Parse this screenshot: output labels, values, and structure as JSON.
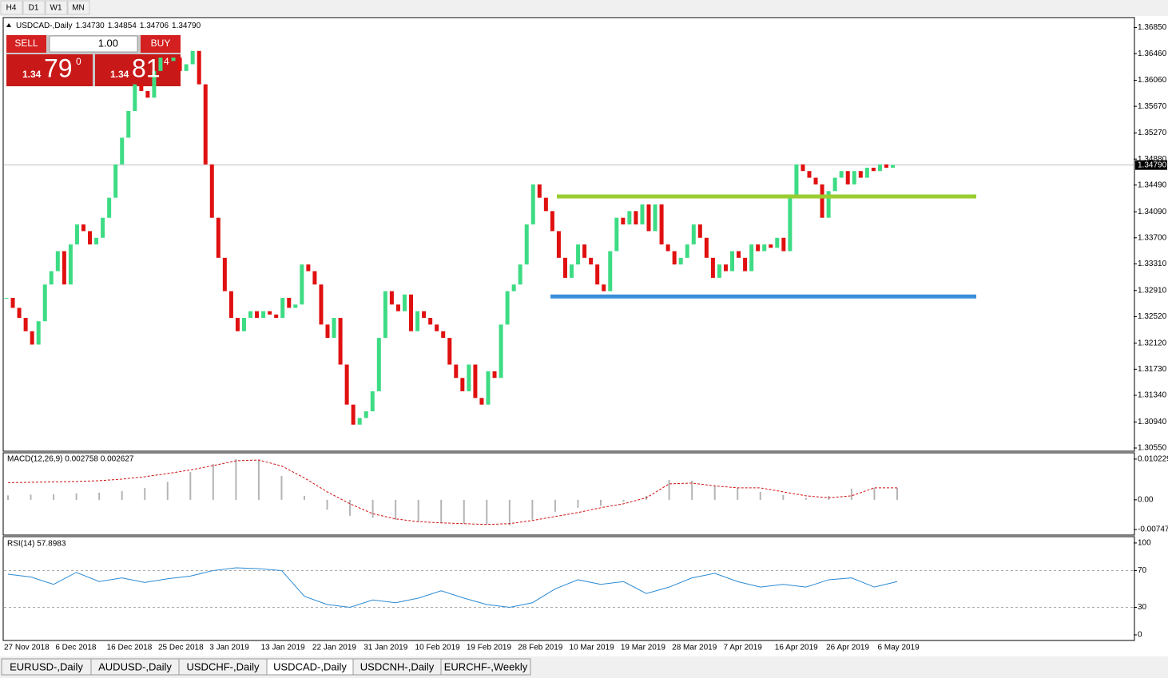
{
  "toolbar": {
    "timeframes": [
      "H4",
      "D1",
      "W1",
      "MN"
    ]
  },
  "symbol_header": {
    "label": "USDCAD-,Daily",
    "open": "1.34730",
    "high": "1.34854",
    "low": "1.34706",
    "close": "1.34790"
  },
  "trade_panel": {
    "sell": "SELL",
    "buy": "BUY",
    "lot": "1.00",
    "sell_big": "1.34",
    "sell_main": "79",
    "sell_frac": "0",
    "buy_big": "1.34",
    "buy_main": "81",
    "buy_frac": "4"
  },
  "price_chart": {
    "type": "candlestick",
    "ylim": [
      1.30514,
      1.37
    ],
    "yticks": [
      {
        "value": 1.3685,
        "label": "1.36850"
      },
      {
        "value": 1.3646,
        "label": "1.36460"
      },
      {
        "value": 1.3606,
        "label": "1.36060"
      },
      {
        "value": 1.3567,
        "label": "1.35670"
      },
      {
        "value": 1.3527,
        "label": "1.35270"
      },
      {
        "value": 1.3488,
        "label": "1.34880"
      },
      {
        "value": 1.3449,
        "label": "1.34490"
      },
      {
        "value": 1.3409,
        "label": "1.34090"
      },
      {
        "value": 1.337,
        "label": "1.33700"
      },
      {
        "value": 1.3331,
        "label": "1.33310"
      },
      {
        "value": 1.3291,
        "label": "1.32910"
      },
      {
        "value": 1.3252,
        "label": "1.32520"
      },
      {
        "value": 1.3212,
        "label": "1.32120"
      },
      {
        "value": 1.3173,
        "label": "1.31730"
      },
      {
        "value": 1.3134,
        "label": "1.31340"
      },
      {
        "value": 1.3094,
        "label": "1.30940"
      },
      {
        "value": 1.3055,
        "label": "1.30550"
      }
    ],
    "current_price": {
      "value": 1.3479,
      "label": "1.34790"
    },
    "up_color": "#3ddc84",
    "down_color": "#e01010",
    "closes": [
      1.328,
      1.3265,
      1.325,
      1.323,
      1.321,
      1.3245,
      1.33,
      1.332,
      1.335,
      1.33,
      1.336,
      1.339,
      1.338,
      1.336,
      1.337,
      1.34,
      1.343,
      1.348,
      1.352,
      1.356,
      1.36,
      1.359,
      1.358,
      1.362,
      1.364,
      1.3635,
      1.364,
      1.362,
      1.363,
      1.365,
      1.36,
      1.348,
      1.34,
      1.334,
      1.329,
      1.325,
      1.323,
      1.325,
      1.326,
      1.325,
      1.326,
      1.3255,
      1.325,
      1.328,
      1.3265,
      1.327,
      1.333,
      1.332,
      1.33,
      1.324,
      1.322,
      1.325,
      1.318,
      1.312,
      1.309,
      1.31,
      1.311,
      1.314,
      1.322,
      1.329,
      1.327,
      1.326,
      1.3285,
      1.323,
      1.326,
      1.325,
      1.324,
      1.323,
      1.322,
      1.318,
      1.316,
      1.314,
      1.318,
      1.313,
      1.312,
      1.317,
      1.316,
      1.324,
      1.329,
      1.33,
      1.333,
      1.339,
      1.345,
      1.343,
      1.341,
      1.338,
      1.334,
      1.331,
      1.333,
      1.336,
      1.334,
      1.333,
      1.33,
      1.329,
      1.335,
      1.34,
      1.339,
      1.341,
      1.339,
      1.342,
      1.338,
      1.342,
      1.336,
      1.335,
      1.333,
      1.334,
      1.336,
      1.339,
      1.337,
      1.334,
      1.331,
      1.333,
      1.332,
      1.335,
      1.334,
      1.332,
      1.336,
      1.335,
      1.336,
      1.3355,
      1.337,
      1.335,
      1.343,
      1.348,
      1.347,
      1.346,
      1.345,
      1.34,
      1.344,
      1.346,
      1.347,
      1.345,
      1.347,
      1.346,
      1.3475,
      1.347,
      1.348,
      1.3475,
      1.3479
    ],
    "levels": [
      {
        "value": 1.3432,
        "color": "#9acd32"
      },
      {
        "value": 1.3282,
        "color": "#3a8fd9"
      }
    ],
    "xlabels": [
      "27 Nov 2018",
      "6 Dec 2018",
      "16 Dec 2018",
      "25 Dec 2018",
      "3 Jan 2019",
      "13 Jan 2019",
      "22 Jan 2019",
      "31 Jan 2019",
      "10 Feb 2019",
      "19 Feb 2019",
      "28 Feb 2019",
      "10 Mar 2019",
      "19 Mar 2019",
      "28 Mar 2019",
      "7 Apr 2019",
      "16 Apr 2019",
      "26 Apr 2019",
      "6 May 2019"
    ]
  },
  "macd": {
    "label": "MACD(12,26,9) 0.002758 0.002627",
    "ylim": [
      -0.00866,
      0.01161
    ],
    "yticks": [
      {
        "value": 0.010229,
        "label": "0.010229"
      },
      {
        "value": 0,
        "label": "0.00"
      },
      {
        "value": -0.007477,
        "label": "-0.007477"
      }
    ],
    "hist_color": "#b4b4b4",
    "signal_color": "#d01010",
    "histogram": [
      0.0011,
      0.0013,
      0.0014,
      0.0016,
      0.0018,
      0.0022,
      0.003,
      0.0045,
      0.007,
      0.009,
      0.0102,
      0.01,
      0.006,
      0.001,
      -0.0025,
      -0.004,
      -0.0045,
      -0.005,
      -0.0055,
      -0.0058,
      -0.006,
      -0.0062,
      -0.0064,
      -0.005,
      -0.003,
      -0.002,
      -0.0015,
      -0.0005,
      0.001,
      0.005,
      0.0048,
      0.0035,
      0.003,
      0.002,
      0.0012,
      0.0005,
      0.001,
      0.0028,
      0.003,
      0.003
    ],
    "signal": [
      0.0043,
      0.0044,
      0.0045,
      0.0046,
      0.0048,
      0.0052,
      0.0058,
      0.0066,
      0.0075,
      0.0086,
      0.0098,
      0.01,
      0.0085,
      0.0055,
      0.002,
      -0.001,
      -0.0035,
      -0.0048,
      -0.0055,
      -0.0058,
      -0.006,
      -0.0062,
      -0.006,
      -0.0052,
      -0.0042,
      -0.0032,
      -0.002,
      -0.001,
      0.0005,
      0.004,
      0.0042,
      0.0035,
      0.003,
      0.003,
      0.002,
      0.001,
      0.0005,
      0.001,
      0.003,
      0.003
    ]
  },
  "rsi": {
    "label": "RSI(14) 57.8983",
    "ylim": [
      -5.2,
      106
    ],
    "yticks": [
      100,
      70,
      30,
      0
    ],
    "grid_levels": [
      70,
      30
    ],
    "color": "#2a8ad4",
    "values": [
      66,
      63,
      55,
      68,
      58,
      62,
      57,
      61,
      64,
      70,
      73,
      72,
      70,
      42,
      33,
      30,
      38,
      35,
      40,
      48,
      40,
      33,
      30,
      35,
      50,
      60,
      55,
      58,
      45,
      52,
      62,
      67,
      58,
      52,
      55,
      52,
      60,
      62,
      52,
      58
    ]
  },
  "tabs": {
    "items": [
      "EURUSD-,Daily",
      "AUDUSD-,Daily",
      "USDCHF-,Daily",
      "USDCAD-,Daily",
      "USDCNH-,Daily",
      "EURCHF-,Weekly"
    ],
    "active": 3
  }
}
